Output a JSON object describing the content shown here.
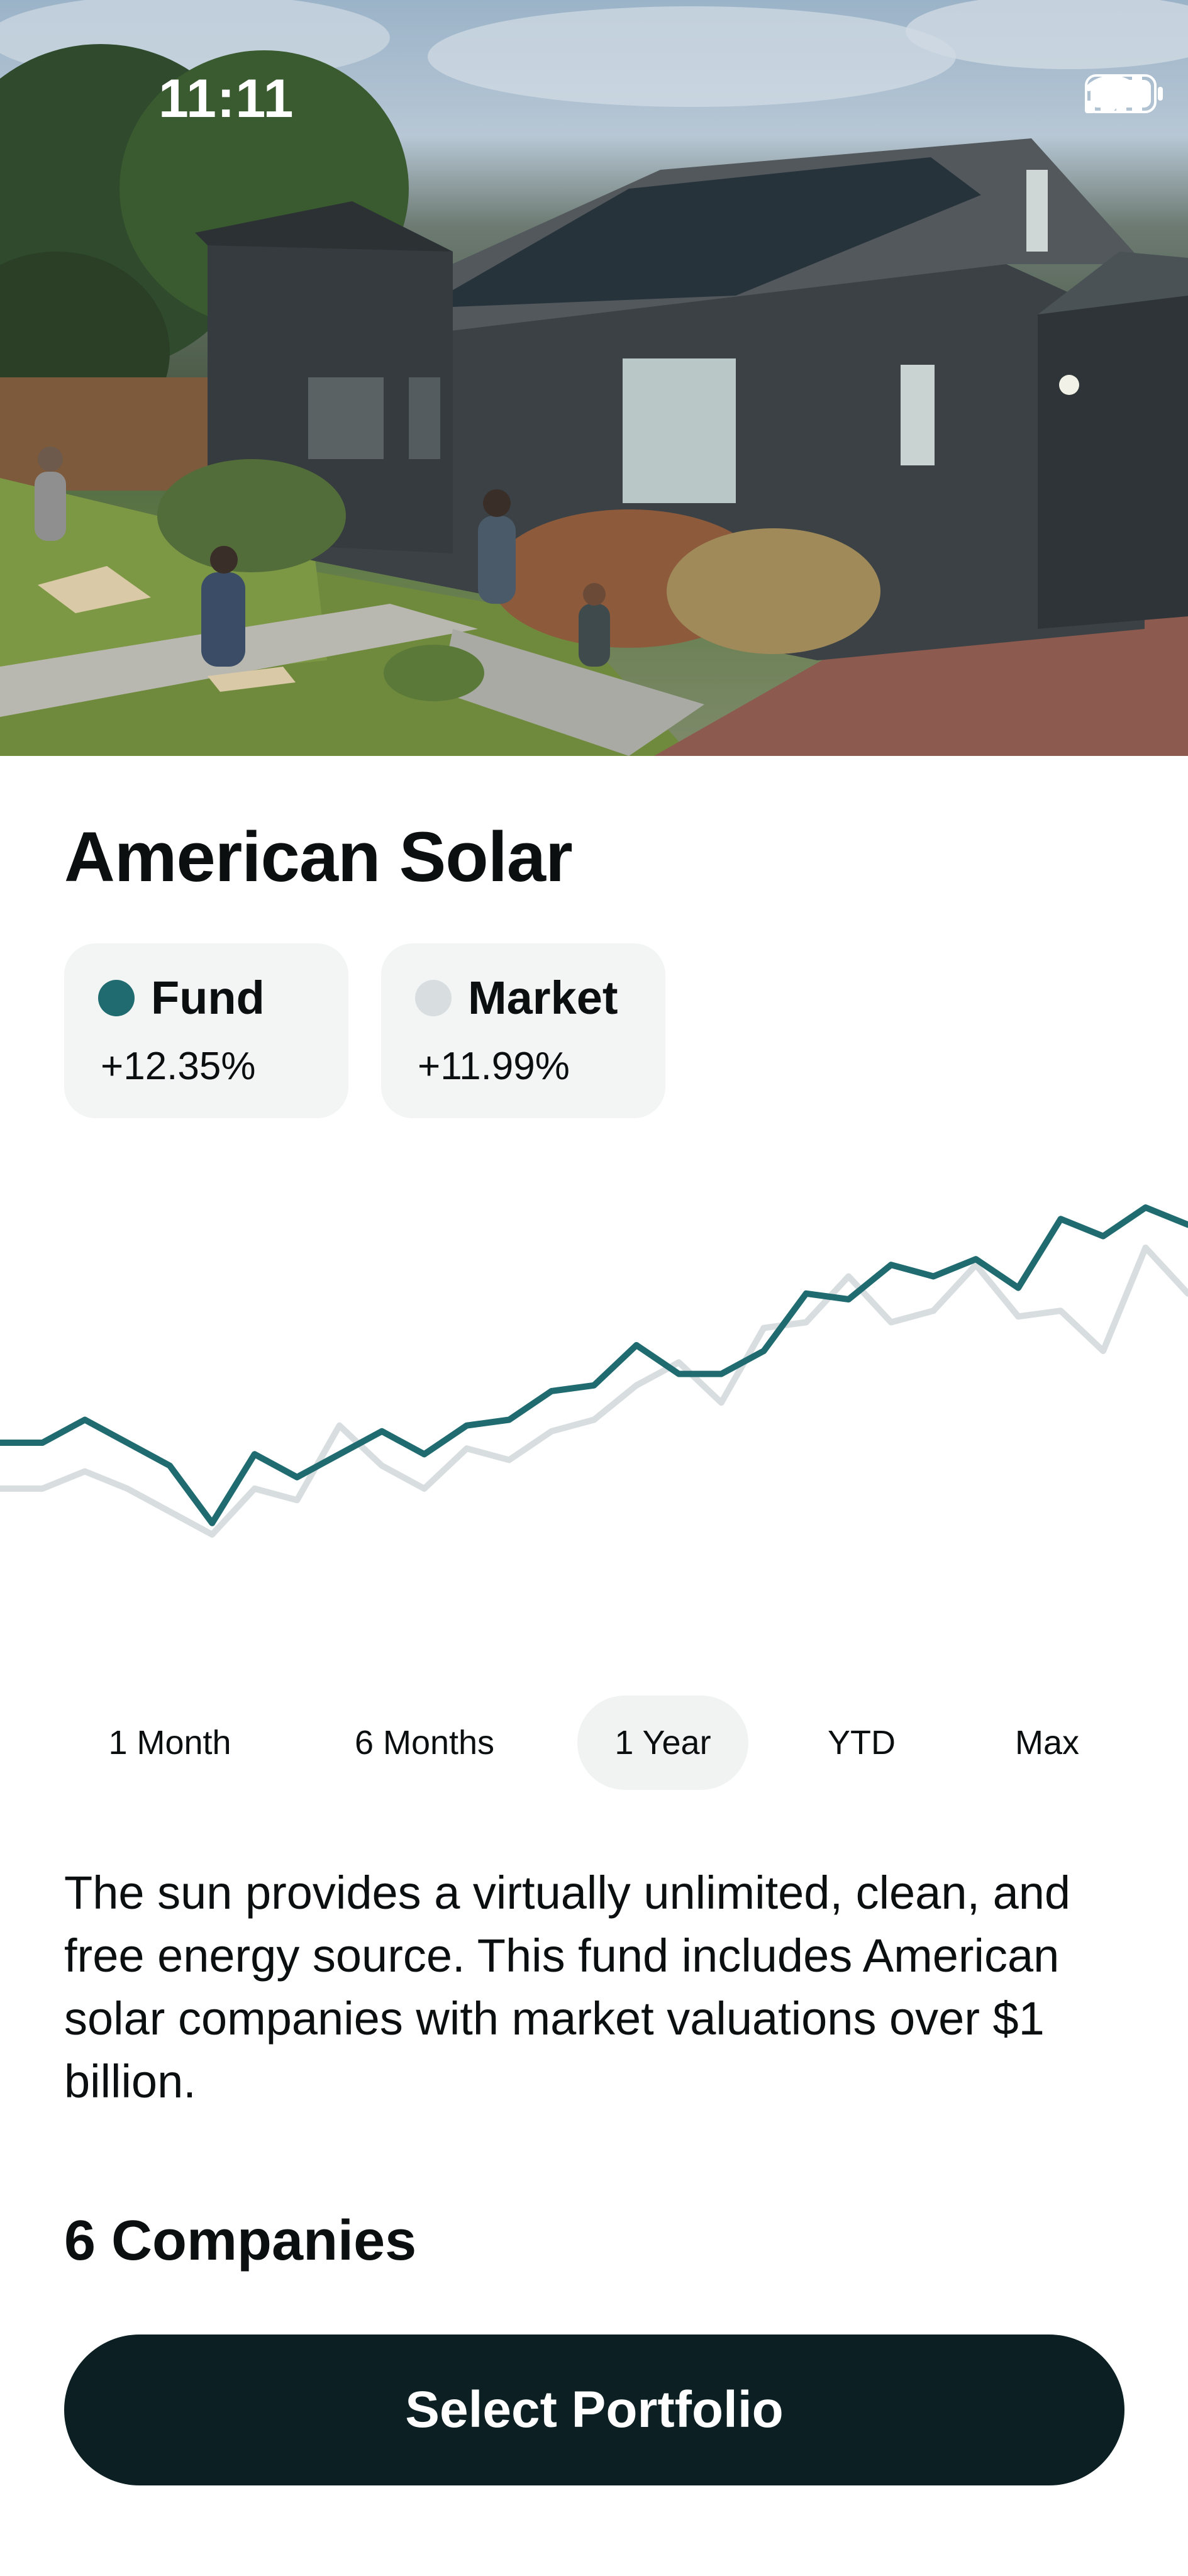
{
  "status_bar": {
    "time": "11:11"
  },
  "fund": {
    "name": "American Solar",
    "description": "The sun provides a virtually unlimited, clean, and free energy source. This fund includes American solar companies with market valuations over $1 billion.",
    "companies_label": "6 Companies",
    "cta_label": "Select Portfolio"
  },
  "legend": [
    {
      "name": "Fund",
      "value": "+12.35%",
      "color": "#1f6b70"
    },
    {
      "name": "Market",
      "value": "+11.99%",
      "color": "#d8dee0"
    }
  ],
  "ranges": [
    {
      "label": "1 Month",
      "active": false
    },
    {
      "label": "6 Months",
      "active": false
    },
    {
      "label": "1 Year",
      "active": true
    },
    {
      "label": "YTD",
      "active": false
    },
    {
      "label": "Max",
      "active": false
    }
  ],
  "chart_data": {
    "type": "line",
    "series": [
      {
        "name": "Fund",
        "color": "#1f6b70",
        "values": [
          11,
          11,
          15,
          11,
          7,
          -3,
          9,
          5,
          9,
          13,
          9,
          14,
          15,
          20,
          21,
          28,
          23,
          23,
          27,
          37,
          36,
          42,
          40,
          43,
          38,
          50,
          47,
          52,
          49
        ]
      },
      {
        "name": "Market",
        "color": "#d8dee0",
        "values": [
          3,
          3,
          6,
          3,
          -1,
          -5,
          3,
          1,
          14,
          7,
          3,
          10,
          8,
          13,
          15,
          21,
          25,
          18,
          31,
          32,
          40,
          32,
          34,
          42,
          33,
          34,
          27,
          45,
          37
        ]
      }
    ]
  }
}
